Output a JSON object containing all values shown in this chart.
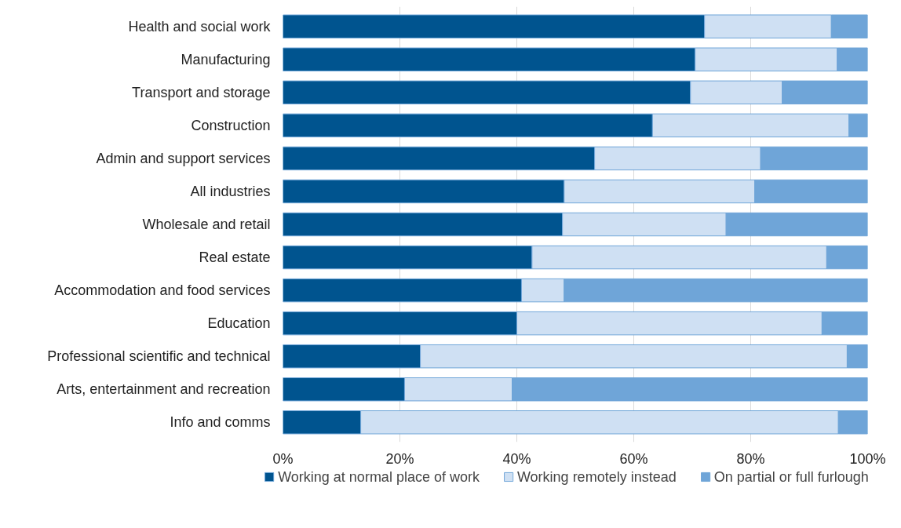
{
  "chart_data": {
    "type": "bar",
    "orientation": "horizontal",
    "stacked": true,
    "categories": [
      "Health and social work",
      "Manufacturing",
      "Transport and storage",
      "Construction",
      "Admin and support services",
      "All industries",
      "Wholesale and retail",
      "Real estate",
      "Accommodation and food services",
      "Education",
      "Professional scientific and technical",
      "Arts, entertainment and recreation",
      "Info and comms"
    ],
    "series": [
      {
        "name": "Working at normal place of work",
        "color": "#00548f",
        "values": [
          72.1,
          70.5,
          69.7,
          63.2,
          53.3,
          48.1,
          47.8,
          42.6,
          40.8,
          40.0,
          23.5,
          20.8,
          13.3
        ]
      },
      {
        "name": "Working remotely instead",
        "color": "#cfe0f3",
        "values": [
          21.7,
          24.3,
          15.7,
          33.6,
          28.4,
          32.6,
          28.0,
          50.4,
          7.3,
          52.2,
          73.0,
          18.4,
          81.7
        ]
      },
      {
        "name": "On partial or full furlough",
        "color": "#6fa5d8",
        "values": [
          6.2,
          5.2,
          14.6,
          3.2,
          18.3,
          19.3,
          24.2,
          7.0,
          51.9,
          7.8,
          3.5,
          60.8,
          5.0
        ]
      }
    ],
    "xlim": [
      0,
      100
    ],
    "xticks": [
      {
        "value": 0,
        "label": "0%"
      },
      {
        "value": 20,
        "label": "20%"
      },
      {
        "value": 40,
        "label": "40%"
      },
      {
        "value": 60,
        "label": "60%"
      },
      {
        "value": 80,
        "label": "80%"
      },
      {
        "value": 100,
        "label": "100%"
      }
    ],
    "grid": "x",
    "legend": "bottom"
  }
}
